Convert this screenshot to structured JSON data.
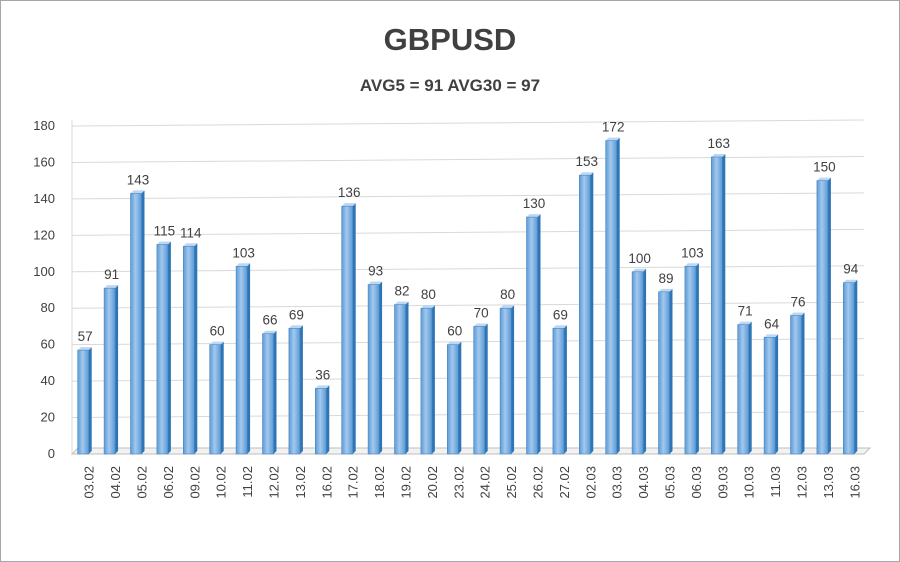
{
  "chart_data": {
    "type": "bar",
    "title": "GBPUSD",
    "subtitle": "AVG5 = 91 AVG30 = 97",
    "xlabel": "",
    "ylabel": "",
    "ylim": [
      0,
      180
    ],
    "yticks": [
      "0",
      "20",
      "40",
      "60",
      "80",
      "100",
      "120",
      "140",
      "160",
      "180"
    ],
    "grid": true,
    "categories": [
      "03.02",
      "04.02",
      "05.02",
      "06.02",
      "09.02",
      "10.02",
      "11.02",
      "12.02",
      "13.02",
      "16.02",
      "17.02",
      "18.02",
      "19.02",
      "20.02",
      "23.02",
      "24.02",
      "25.02",
      "26.02",
      "27.02",
      "02.03",
      "03.03",
      "04.03",
      "05.03",
      "06.03",
      "09.03",
      "10.03",
      "11.03",
      "12.03",
      "13.03",
      "16.03"
    ],
    "values": [
      57,
      91,
      143,
      115,
      114,
      60,
      103,
      66,
      69,
      36,
      136,
      93,
      82,
      80,
      60,
      70,
      80,
      130,
      69,
      153,
      172,
      100,
      89,
      103,
      163,
      71,
      64,
      76,
      150,
      94
    ],
    "colors": {
      "bar_front": "#5b9bd5",
      "bar_light": "#a3c8ee",
      "bar_side": "#2e75b6",
      "bar_top": "#bcd7f3",
      "grid": "#d9d9d9",
      "floor": "#bfbfbf"
    }
  }
}
